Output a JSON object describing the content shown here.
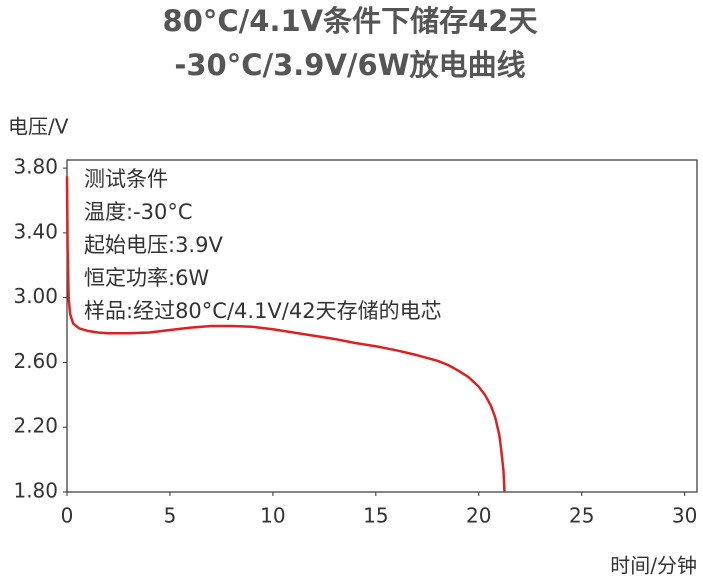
{
  "chart_data": {
    "type": "line",
    "title": [
      "80°C/4.1V条件下储存42天",
      "-30°C/3.9V/6W放电曲线"
    ],
    "y_label": "电压/V",
    "x_label": "时间/分钟",
    "annotations": [
      "测试条件",
      "温度:-30°C",
      "起始电压:3.9V",
      "恒定功率:6W",
      "样品:经过80°C/4.1V/42天存储的电芯"
    ],
    "x": [
      0,
      0.03,
      0.08,
      0.15,
      0.3,
      0.6,
      1,
      1.5,
      2,
      3,
      4,
      5,
      6,
      7,
      8,
      9,
      10,
      11,
      12,
      13,
      14,
      15,
      16,
      17,
      18,
      18.5,
      19,
      19.5,
      20,
      20.3,
      20.6,
      20.8,
      21,
      21.1,
      21.2,
      21.25
    ],
    "values": [
      3.75,
      3.3,
      3.0,
      2.9,
      2.84,
      2.81,
      2.795,
      2.785,
      2.78,
      2.78,
      2.785,
      2.8,
      2.815,
      2.825,
      2.825,
      2.82,
      2.805,
      2.785,
      2.765,
      2.745,
      2.72,
      2.7,
      2.675,
      2.645,
      2.61,
      2.585,
      2.55,
      2.51,
      2.45,
      2.4,
      2.33,
      2.26,
      2.15,
      2.05,
      1.93,
      1.8
    ],
    "color": "#e02020",
    "xlim": [
      0,
      30.6
    ],
    "ylim": [
      1.8,
      3.85
    ],
    "xticks": [
      0,
      5,
      10,
      15,
      20,
      25,
      30
    ],
    "yticks": [
      {
        "value": 1.8,
        "label": "1.80"
      },
      {
        "value": 2.2,
        "label": "2.20"
      },
      {
        "value": 2.6,
        "label": "2.60"
      },
      {
        "value": 3.0,
        "label": "3.00"
      },
      {
        "value": 3.4,
        "label": "3.40"
      },
      {
        "value": 3.8,
        "label": "3.80"
      }
    ],
    "grid": false
  }
}
